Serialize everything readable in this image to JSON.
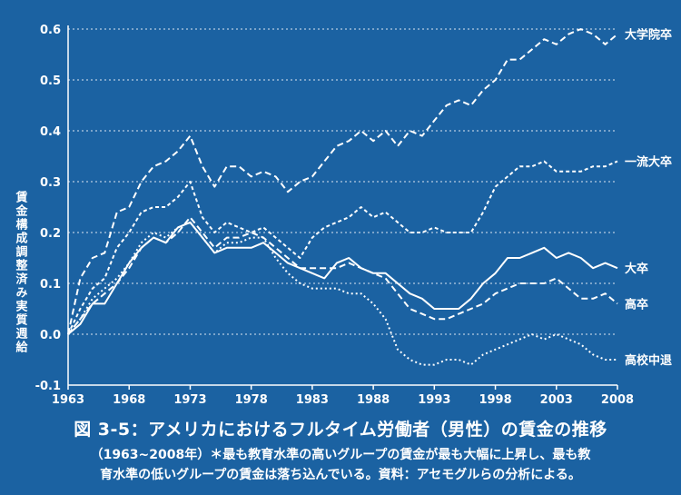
{
  "figure": {
    "title": "図 3-5：アメリカにおけるフルタイム労働者（男性）の賃金の推移",
    "subtitle_line1": "（1963~2008年）＊最も教育水準の高いグループの賃金が最も大幅に上昇し、最も教",
    "subtitle_line2": "育水準の低いグループの賃金は落ち込んでいる。資料：アセモグルらの分析による。"
  },
  "colors": {
    "background": "#1b62a2",
    "foreground": "#ffffff"
  },
  "chart_data": {
    "type": "line",
    "ylabel": "賃金構成調整済み実質週給",
    "xlabel": "",
    "xlim": [
      1963,
      2008
    ],
    "ylim": [
      -0.1,
      0.6
    ],
    "x_ticks": [
      1963,
      1968,
      1973,
      1978,
      1983,
      1988,
      1993,
      1998,
      2003,
      2008
    ],
    "y_ticks": [
      -0.1,
      0.0,
      0.1,
      0.2,
      0.3,
      0.4,
      0.5,
      0.6
    ],
    "y_tick_labels": [
      "-0.1",
      "0.0",
      "0.1",
      "0.2",
      "0.3",
      "0.4",
      "0.5",
      "0.6"
    ],
    "grid": "horizontal dotted",
    "series": [
      {
        "name": "大学院卒",
        "style": "dashed",
        "x": [
          1963,
          1964,
          1965,
          1966,
          1967,
          1968,
          1969,
          1970,
          1971,
          1972,
          1973,
          1974,
          1975,
          1976,
          1977,
          1978,
          1979,
          1980,
          1981,
          1982,
          1983,
          1984,
          1985,
          1986,
          1987,
          1988,
          1989,
          1990,
          1991,
          1992,
          1993,
          1994,
          1995,
          1996,
          1997,
          1998,
          1999,
          2000,
          2001,
          2002,
          2003,
          2004,
          2005,
          2006,
          2007,
          2008
        ],
        "values": [
          0.0,
          0.11,
          0.15,
          0.16,
          0.24,
          0.25,
          0.3,
          0.33,
          0.34,
          0.36,
          0.39,
          0.33,
          0.29,
          0.33,
          0.33,
          0.31,
          0.32,
          0.31,
          0.28,
          0.3,
          0.31,
          0.34,
          0.37,
          0.38,
          0.4,
          0.38,
          0.4,
          0.37,
          0.4,
          0.39,
          0.42,
          0.45,
          0.46,
          0.45,
          0.48,
          0.5,
          0.54,
          0.54,
          0.56,
          0.58,
          0.57,
          0.59,
          0.6,
          0.59,
          0.57,
          0.59
        ]
      },
      {
        "name": "一流大卒",
        "style": "short-dashed",
        "x": [
          1963,
          1964,
          1965,
          1966,
          1967,
          1968,
          1969,
          1970,
          1971,
          1972,
          1973,
          1974,
          1975,
          1976,
          1977,
          1978,
          1979,
          1980,
          1981,
          1982,
          1983,
          1984,
          1985,
          1986,
          1987,
          1988,
          1989,
          1990,
          1991,
          1992,
          1993,
          1994,
          1995,
          1996,
          1997,
          1998,
          1999,
          2000,
          2001,
          2002,
          2003,
          2004,
          2005,
          2006,
          2007,
          2008
        ],
        "values": [
          0.0,
          0.05,
          0.09,
          0.11,
          0.17,
          0.2,
          0.24,
          0.25,
          0.25,
          0.27,
          0.3,
          0.23,
          0.2,
          0.22,
          0.21,
          0.2,
          0.21,
          0.19,
          0.17,
          0.15,
          0.19,
          0.21,
          0.22,
          0.23,
          0.25,
          0.23,
          0.24,
          0.22,
          0.2,
          0.2,
          0.21,
          0.2,
          0.2,
          0.2,
          0.24,
          0.29,
          0.31,
          0.33,
          0.33,
          0.34,
          0.32,
          0.32,
          0.32,
          0.33,
          0.33,
          0.34
        ]
      },
      {
        "name": "大卒",
        "style": "solid",
        "x": [
          1963,
          1964,
          1965,
          1966,
          1967,
          1968,
          1969,
          1970,
          1971,
          1972,
          1973,
          1974,
          1975,
          1976,
          1977,
          1978,
          1979,
          1980,
          1981,
          1982,
          1983,
          1984,
          1985,
          1986,
          1987,
          1988,
          1989,
          1990,
          1991,
          1992,
          1993,
          1994,
          1995,
          1996,
          1997,
          1998,
          1999,
          2000,
          2001,
          2002,
          2003,
          2004,
          2005,
          2006,
          2007,
          2008
        ],
        "values": [
          0.0,
          0.02,
          0.06,
          0.06,
          0.1,
          0.14,
          0.17,
          0.19,
          0.18,
          0.21,
          0.22,
          0.19,
          0.16,
          0.17,
          0.17,
          0.17,
          0.18,
          0.16,
          0.14,
          0.13,
          0.12,
          0.11,
          0.14,
          0.15,
          0.13,
          0.12,
          0.12,
          0.1,
          0.08,
          0.07,
          0.05,
          0.05,
          0.05,
          0.07,
          0.1,
          0.12,
          0.15,
          0.15,
          0.16,
          0.17,
          0.15,
          0.16,
          0.15,
          0.13,
          0.14,
          0.13
        ]
      },
      {
        "name": "高卒",
        "style": "dashed",
        "x": [
          1963,
          1964,
          1965,
          1966,
          1967,
          1968,
          1969,
          1970,
          1971,
          1972,
          1973,
          1974,
          1975,
          1976,
          1977,
          1978,
          1979,
          1980,
          1981,
          1982,
          1983,
          1984,
          1985,
          1986,
          1987,
          1988,
          1989,
          1990,
          1991,
          1992,
          1993,
          1994,
          1995,
          1996,
          1997,
          1998,
          1999,
          2000,
          2001,
          2002,
          2003,
          2004,
          2005,
          2006,
          2007,
          2008
        ],
        "values": [
          0.0,
          0.03,
          0.06,
          0.08,
          0.1,
          0.13,
          0.17,
          0.19,
          0.18,
          0.2,
          0.23,
          0.2,
          0.17,
          0.19,
          0.19,
          0.2,
          0.19,
          0.17,
          0.15,
          0.13,
          0.13,
          0.13,
          0.13,
          0.14,
          0.13,
          0.12,
          0.11,
          0.08,
          0.05,
          0.04,
          0.03,
          0.03,
          0.04,
          0.05,
          0.06,
          0.08,
          0.09,
          0.1,
          0.1,
          0.1,
          0.11,
          0.09,
          0.07,
          0.07,
          0.08,
          0.06
        ]
      },
      {
        "name": "高校中退",
        "style": "dotted",
        "x": [
          1963,
          1964,
          1965,
          1966,
          1967,
          1968,
          1969,
          1970,
          1971,
          1972,
          1973,
          1974,
          1975,
          1976,
          1977,
          1978,
          1979,
          1980,
          1981,
          1982,
          1983,
          1984,
          1985,
          1986,
          1987,
          1988,
          1989,
          1990,
          1991,
          1992,
          1993,
          1994,
          1995,
          1996,
          1997,
          1998,
          1999,
          2000,
          2001,
          2002,
          2003,
          2004,
          2005,
          2006,
          2007,
          2008
        ],
        "values": [
          0.0,
          0.03,
          0.07,
          0.09,
          0.11,
          0.14,
          0.18,
          0.2,
          0.19,
          0.21,
          0.22,
          0.19,
          0.16,
          0.18,
          0.18,
          0.19,
          0.19,
          0.15,
          0.12,
          0.1,
          0.09,
          0.09,
          0.09,
          0.08,
          0.08,
          0.06,
          0.03,
          -0.03,
          -0.05,
          -0.06,
          -0.06,
          -0.05,
          -0.05,
          -0.06,
          -0.04,
          -0.03,
          -0.02,
          -0.01,
          0.0,
          -0.01,
          0.0,
          -0.01,
          -0.02,
          -0.04,
          -0.05,
          -0.05
        ]
      }
    ]
  }
}
